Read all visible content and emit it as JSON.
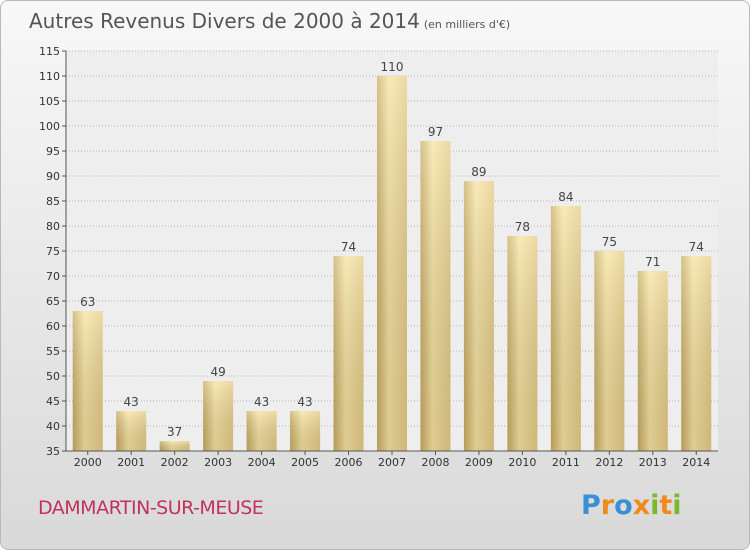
{
  "chart_data": {
    "type": "bar",
    "title": "Autres Revenus Divers de 2000 à 2014",
    "subtitle": "(en milliers d'€)",
    "xlabel": "",
    "ylabel": "",
    "categories": [
      "2000",
      "2001",
      "2002",
      "2003",
      "2004",
      "2005",
      "2006",
      "2007",
      "2008",
      "2009",
      "2010",
      "2011",
      "2012",
      "2013",
      "2014"
    ],
    "values": [
      63,
      43,
      37,
      49,
      43,
      43,
      74,
      110,
      97,
      89,
      78,
      84,
      75,
      71,
      74
    ],
    "ylim": [
      35,
      115
    ],
    "yticks": [
      35,
      40,
      45,
      50,
      55,
      60,
      65,
      70,
      75,
      80,
      85,
      90,
      95,
      100,
      105,
      110,
      115
    ],
    "grid": "horizontal dotted",
    "legend": "none",
    "bar_color": "#e6cc85",
    "bar_highlight_color": "#f7e3a1",
    "bar_shadow_color": "#c9ad62"
  },
  "footer": {
    "commune": "DAMMARTIN-SUR-MEUSE",
    "commune_color": "#c0335c"
  },
  "logo": {
    "text": "Proxiti",
    "letters": [
      {
        "ch": "P",
        "color": "#3a8fd6"
      },
      {
        "ch": "r",
        "color": "#f08a1c"
      },
      {
        "ch": "o",
        "color": "#3a8fd6"
      },
      {
        "ch": "x",
        "color": "#f08a1c"
      },
      {
        "ch": "i",
        "color": "#7ab82e"
      },
      {
        "ch": "t",
        "color": "#f08a1c"
      },
      {
        "ch": "i",
        "color": "#7ab82e"
      }
    ]
  }
}
